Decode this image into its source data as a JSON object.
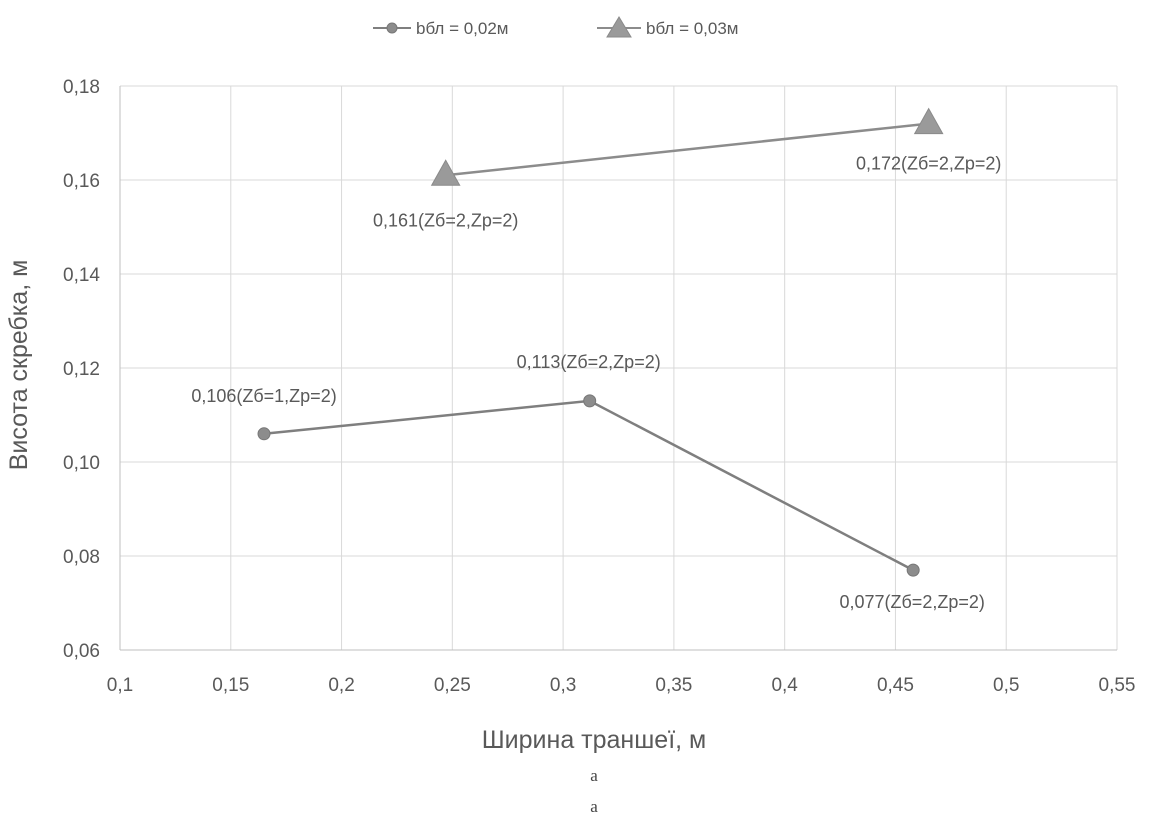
{
  "chart_data": {
    "type": "scatter",
    "title": "",
    "xlabel": "Ширина траншеї, м",
    "ylabel": "Висота скребка, м",
    "xlim": [
      0.1,
      0.55
    ],
    "ylim": [
      0.06,
      0.18
    ],
    "x_ticks": [
      "0,1",
      "0,15",
      "0,2",
      "0,25",
      "0,3",
      "0,35",
      "0,4",
      "0,45",
      "0,5",
      "0,55"
    ],
    "y_ticks": [
      "0,06",
      "0,08",
      "0,10",
      "0,12",
      "0,14",
      "0,16",
      "0,18"
    ],
    "grid": true,
    "legend_position": "top",
    "series": [
      {
        "name": "bбл = 0,02м",
        "marker": "circle",
        "color": "#7f7f7f",
        "points": [
          {
            "x": 0.165,
            "y": 0.106,
            "label": "0,106(Zб=1,Zр=2)"
          },
          {
            "x": 0.312,
            "y": 0.113,
            "label": "0,113(Zб=2,Zр=2)"
          },
          {
            "x": 0.458,
            "y": 0.077,
            "label": "0,077(Zб=2,Zр=2)"
          }
        ]
      },
      {
        "name": "bбл = 0,03м",
        "marker": "triangle",
        "color": "#8c8c8c",
        "points": [
          {
            "x": 0.247,
            "y": 0.161,
            "label": "0,161(Zб=2,Zр=2)"
          },
          {
            "x": 0.465,
            "y": 0.172,
            "label": "0,172(Zб=2,Zр=2)"
          }
        ]
      }
    ]
  },
  "captions": [
    "а",
    "а"
  ]
}
